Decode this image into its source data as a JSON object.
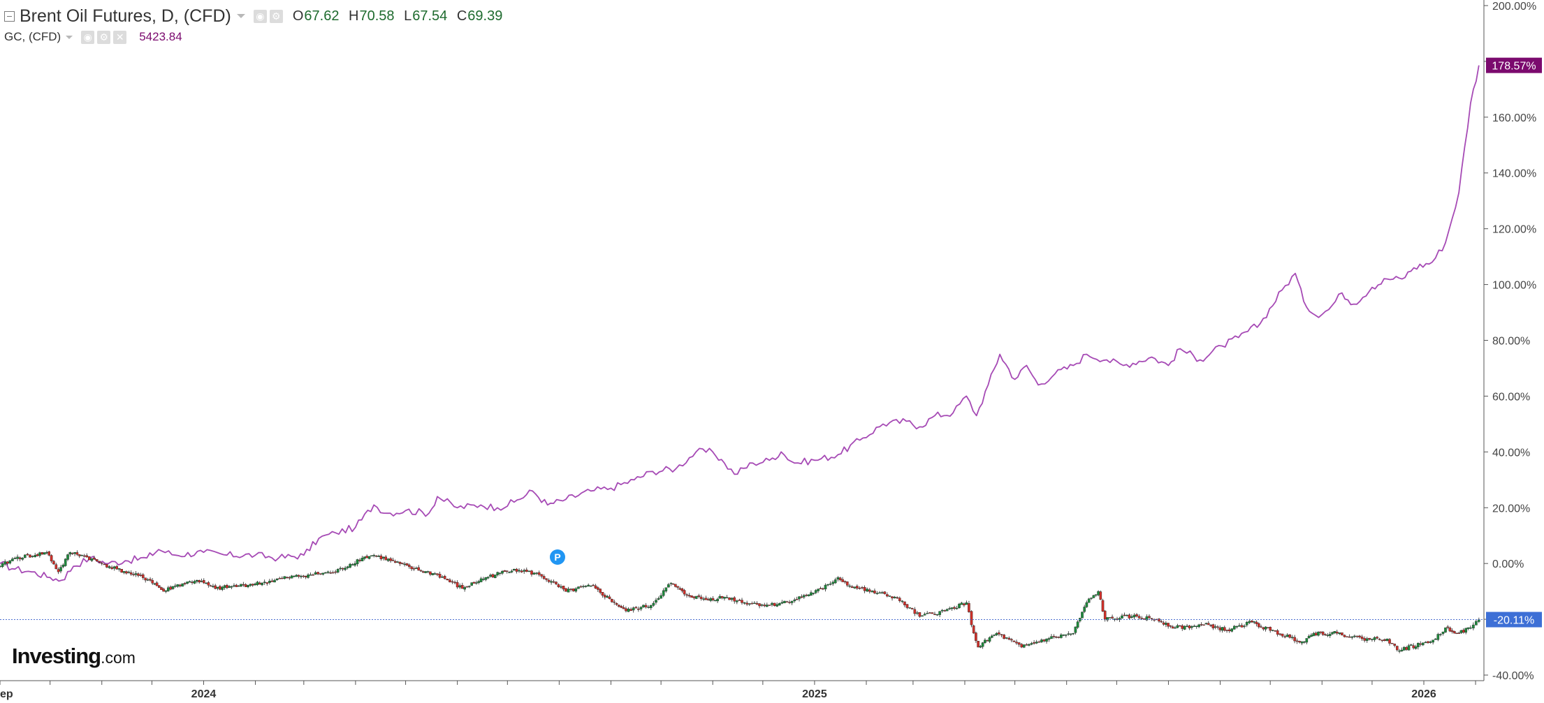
{
  "legend": {
    "main": {
      "title": "Brent Oil Futures, D, (CFD)",
      "open_label": "O",
      "open": "67.62",
      "high_label": "H",
      "high": "70.58",
      "low_label": "L",
      "low": "67.54",
      "close_label": "C",
      "close": "69.39"
    },
    "compare": {
      "title": "GC, (CFD)",
      "value": "5423.84",
      "color": "#7b0a6e"
    }
  },
  "logo": {
    "main": "Investing",
    "suffix": ".com"
  },
  "marker": {
    "label": "P",
    "date": "2024-07-31",
    "color": "#2196f3"
  },
  "colors": {
    "up": "#1e8a3c",
    "down": "#d0302a",
    "gold_line": "#a64ab5",
    "last_price_line": "#4b6fd0"
  },
  "chart_data": {
    "type": "line",
    "title": "",
    "xlabel": "",
    "ylabel": "",
    "y_unit": "%",
    "ylim": [
      -42,
      202
    ],
    "xlim": [
      "2023-09-01",
      "2026-02-06"
    ],
    "y_ticks": [
      200,
      180,
      160,
      140,
      120,
      100,
      80,
      60,
      40,
      20,
      0,
      -20,
      -40
    ],
    "y_tick_labels": [
      "200.00%",
      "180.00%",
      "160.00%",
      "140.00%",
      "120.00%",
      "100.00%",
      "80.00%",
      "60.00%",
      "40.00%",
      "20.00%",
      "0.00%",
      "-20.00%",
      "-40.00%"
    ],
    "x_tick_labels": [
      {
        "date": "2023-09-01",
        "label": "ep"
      },
      {
        "date": "2024-01-01",
        "label": "2024"
      },
      {
        "date": "2025-01-01",
        "label": "2025"
      },
      {
        "date": "2026-01-01",
        "label": "2026"
      }
    ],
    "x_minor_ticks": [
      "2023-10-01",
      "2023-11-01",
      "2023-12-01",
      "2024-02-01",
      "2024-03-01",
      "2024-04-01",
      "2024-05-01",
      "2024-06-01",
      "2024-07-01",
      "2024-08-01",
      "2024-09-01",
      "2024-10-01",
      "2024-11-01",
      "2024-12-01",
      "2025-02-01",
      "2025-03-01",
      "2025-04-01",
      "2025-05-01",
      "2025-06-01",
      "2025-07-01",
      "2025-08-01",
      "2025-09-01",
      "2025-10-01",
      "2025-11-01",
      "2025-12-01",
      "2026-02-01"
    ],
    "series": [
      {
        "name": "GC, (CFD)",
        "style": "line",
        "color": "#a64ab5",
        "last_label": "178.57%",
        "last_value": 178.57,
        "points": [
          [
            "2023-09-01",
            0
          ],
          [
            "2023-09-10",
            -2
          ],
          [
            "2023-09-20",
            -3
          ],
          [
            "2023-10-01",
            -5
          ],
          [
            "2023-10-08",
            -6
          ],
          [
            "2023-10-15",
            -1
          ],
          [
            "2023-10-25",
            2
          ],
          [
            "2023-11-05",
            0
          ],
          [
            "2023-11-15",
            1
          ],
          [
            "2023-11-28",
            2
          ],
          [
            "2023-12-05",
            5
          ],
          [
            "2023-12-15",
            3
          ],
          [
            "2024-01-01",
            4
          ],
          [
            "2024-01-15",
            3
          ],
          [
            "2024-02-01",
            3
          ],
          [
            "2024-02-15",
            2
          ],
          [
            "2024-03-01",
            3
          ],
          [
            "2024-03-10",
            9
          ],
          [
            "2024-03-20",
            11
          ],
          [
            "2024-04-01",
            13
          ],
          [
            "2024-04-12",
            21
          ],
          [
            "2024-04-20",
            18
          ],
          [
            "2024-05-01",
            19
          ],
          [
            "2024-05-15",
            18
          ],
          [
            "2024-05-20",
            24
          ],
          [
            "2024-06-01",
            20
          ],
          [
            "2024-06-15",
            21
          ],
          [
            "2024-06-25",
            20
          ],
          [
            "2024-07-05",
            22
          ],
          [
            "2024-07-16",
            26
          ],
          [
            "2024-07-25",
            21
          ],
          [
            "2024-08-05",
            23
          ],
          [
            "2024-08-20",
            26
          ],
          [
            "2024-09-01",
            27
          ],
          [
            "2024-09-15",
            30
          ],
          [
            "2024-09-26",
            33
          ],
          [
            "2024-10-10",
            34
          ],
          [
            "2024-10-22",
            40
          ],
          [
            "2024-11-01",
            40
          ],
          [
            "2024-11-08",
            36
          ],
          [
            "2024-11-14",
            32
          ],
          [
            "2024-11-25",
            36
          ],
          [
            "2024-12-05",
            37
          ],
          [
            "2024-12-12",
            40
          ],
          [
            "2024-12-20",
            36
          ],
          [
            "2025-01-01",
            37
          ],
          [
            "2025-01-15",
            39
          ],
          [
            "2025-01-30",
            45
          ],
          [
            "2025-02-11",
            50
          ],
          [
            "2025-02-25",
            51
          ],
          [
            "2025-03-05",
            49
          ],
          [
            "2025-03-14",
            53
          ],
          [
            "2025-03-25",
            54
          ],
          [
            "2025-04-02",
            60
          ],
          [
            "2025-04-08",
            53
          ],
          [
            "2025-04-15",
            64
          ],
          [
            "2025-04-22",
            75
          ],
          [
            "2025-05-01",
            66
          ],
          [
            "2025-05-08",
            71
          ],
          [
            "2025-05-15",
            64
          ],
          [
            "2025-05-25",
            68
          ],
          [
            "2025-06-05",
            71
          ],
          [
            "2025-06-13",
            75
          ],
          [
            "2025-06-25",
            73
          ],
          [
            "2025-07-05",
            71
          ],
          [
            "2025-07-22",
            74
          ],
          [
            "2025-08-01",
            71
          ],
          [
            "2025-08-08",
            77
          ],
          [
            "2025-08-20",
            73
          ],
          [
            "2025-09-02",
            78
          ],
          [
            "2025-09-12",
            81
          ],
          [
            "2025-09-25",
            86
          ],
          [
            "2025-10-08",
            98
          ],
          [
            "2025-10-16",
            104
          ],
          [
            "2025-10-21",
            94
          ],
          [
            "2025-10-28",
            89
          ],
          [
            "2025-11-05",
            91
          ],
          [
            "2025-11-13",
            97
          ],
          [
            "2025-11-20",
            93
          ],
          [
            "2025-12-01",
            99
          ],
          [
            "2025-12-10",
            102
          ],
          [
            "2025-12-19",
            102
          ],
          [
            "2025-12-26",
            106
          ],
          [
            "2026-01-06",
            108
          ],
          [
            "2026-01-14",
            115
          ],
          [
            "2026-01-22",
            133
          ],
          [
            "2026-01-29",
            165
          ],
          [
            "2026-02-03",
            178.57
          ]
        ]
      },
      {
        "name": "Brent Oil Futures, D, (CFD)",
        "style": "candlestick",
        "last_label": "-20.11%",
        "last_value": -20.11,
        "points": [
          [
            "2023-09-01",
            -1
          ],
          [
            "2023-09-10",
            2
          ],
          [
            "2023-09-22",
            3
          ],
          [
            "2023-09-29",
            4
          ],
          [
            "2023-10-06",
            -3
          ],
          [
            "2023-10-13",
            4
          ],
          [
            "2023-10-20",
            3
          ],
          [
            "2023-11-01",
            0
          ],
          [
            "2023-11-10",
            -2
          ],
          [
            "2023-11-20",
            -4
          ],
          [
            "2023-11-30",
            -6
          ],
          [
            "2023-12-08",
            -10
          ],
          [
            "2023-12-15",
            -8
          ],
          [
            "2023-12-28",
            -6
          ],
          [
            "2024-01-08",
            -9
          ],
          [
            "2024-01-22",
            -8
          ],
          [
            "2024-02-05",
            -7
          ],
          [
            "2024-02-20",
            -5
          ],
          [
            "2024-03-05",
            -4
          ],
          [
            "2024-03-20",
            -3
          ],
          [
            "2024-04-05",
            2
          ],
          [
            "2024-04-12",
            3
          ],
          [
            "2024-04-22",
            1
          ],
          [
            "2024-05-06",
            -2
          ],
          [
            "2024-05-20",
            -4
          ],
          [
            "2024-06-04",
            -9
          ],
          [
            "2024-06-18",
            -5
          ],
          [
            "2024-07-05",
            -2
          ],
          [
            "2024-07-20",
            -4
          ],
          [
            "2024-08-05",
            -10
          ],
          [
            "2024-08-20",
            -8
          ],
          [
            "2024-09-03",
            -14
          ],
          [
            "2024-09-10",
            -17
          ],
          [
            "2024-09-25",
            -15
          ],
          [
            "2024-10-07",
            -7
          ],
          [
            "2024-10-15",
            -11
          ],
          [
            "2024-10-28",
            -13
          ],
          [
            "2024-11-08",
            -12
          ],
          [
            "2024-11-20",
            -14
          ],
          [
            "2024-12-05",
            -15
          ],
          [
            "2024-12-20",
            -13
          ],
          [
            "2025-01-06",
            -9
          ],
          [
            "2025-01-15",
            -5
          ],
          [
            "2025-01-22",
            -8
          ],
          [
            "2025-02-03",
            -10
          ],
          [
            "2025-02-18",
            -12
          ],
          [
            "2025-03-05",
            -19
          ],
          [
            "2025-03-20",
            -17
          ],
          [
            "2025-04-02",
            -14
          ],
          [
            "2025-04-05",
            -22
          ],
          [
            "2025-04-09",
            -30
          ],
          [
            "2025-04-20",
            -25
          ],
          [
            "2025-05-05",
            -30
          ],
          [
            "2025-05-20",
            -27
          ],
          [
            "2025-06-05",
            -25
          ],
          [
            "2025-06-13",
            -14
          ],
          [
            "2025-06-20",
            -10
          ],
          [
            "2025-06-24",
            -20
          ],
          [
            "2025-07-10",
            -19
          ],
          [
            "2025-07-25",
            -20
          ],
          [
            "2025-08-05",
            -23
          ],
          [
            "2025-08-25",
            -22
          ],
          [
            "2025-09-05",
            -24
          ],
          [
            "2025-09-20",
            -21
          ],
          [
            "2025-10-01",
            -24
          ],
          [
            "2025-10-20",
            -28
          ],
          [
            "2025-10-27",
            -25
          ],
          [
            "2025-11-10",
            -25
          ],
          [
            "2025-11-25",
            -27
          ],
          [
            "2025-12-10",
            -27
          ],
          [
            "2025-12-16",
            -31
          ],
          [
            "2025-12-30",
            -29
          ],
          [
            "2026-01-08",
            -27
          ],
          [
            "2026-01-14",
            -23
          ],
          [
            "2026-01-22",
            -25
          ],
          [
            "2026-01-29",
            -23
          ],
          [
            "2026-02-03",
            -20.11
          ]
        ]
      }
    ],
    "grid": false,
    "legend_position": "top-left"
  }
}
